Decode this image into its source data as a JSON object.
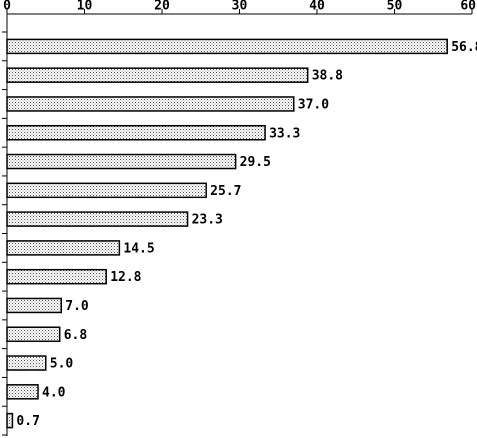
{
  "chart_data": {
    "type": "bar",
    "orientation": "horizontal",
    "categories": [
      null,
      null,
      null,
      null,
      null,
      null,
      null,
      null,
      null,
      null,
      null,
      null,
      null,
      null
    ],
    "values": [
      56.8,
      38.8,
      37.0,
      33.3,
      29.5,
      25.7,
      23.3,
      14.5,
      12.8,
      7.0,
      6.8,
      5.0,
      4.0,
      0.7
    ],
    "value_labels": [
      "56.8",
      "38.8",
      "37.0",
      "33.3",
      "29.5",
      "25.7",
      "23.3",
      "14.5",
      "12.8",
      "7.0",
      "6.8",
      "5.0",
      "4.0",
      "0.7"
    ],
    "xlim": [
      0,
      60
    ],
    "xticks": [
      0,
      10,
      20,
      30,
      40,
      50,
      60
    ]
  }
}
